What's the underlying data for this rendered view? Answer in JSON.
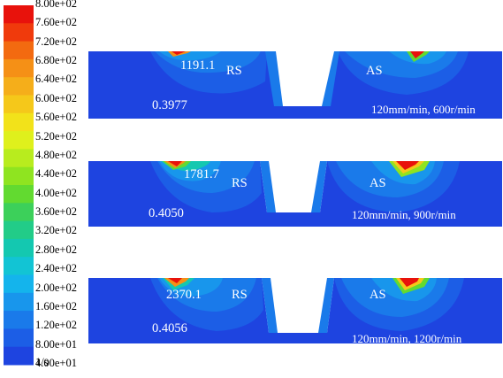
{
  "legend": {
    "unit": "1/s",
    "levels": [
      "8.00e+02",
      "7.60e+02",
      "7.20e+02",
      "6.80e+02",
      "6.40e+02",
      "6.00e+02",
      "5.60e+02",
      "5.20e+02",
      "4.80e+02",
      "4.40e+02",
      "4.00e+02",
      "3.60e+02",
      "3.20e+02",
      "2.80e+02",
      "2.40e+02",
      "2.00e+02",
      "1.60e+02",
      "1.20e+02",
      "8.00e+01",
      "4.00e+01"
    ],
    "colors": [
      "#e8120c",
      "#f03a0c",
      "#f36a10",
      "#f59016",
      "#f5ae1a",
      "#f5c81a",
      "#f2e21a",
      "#dff01c",
      "#b8ec1e",
      "#8fe420",
      "#62da30",
      "#3cd05a",
      "#22cc88",
      "#14c8b0",
      "#12c4d4",
      "#14b4ec",
      "#1896ec",
      "#1a7aea",
      "#1c5ee6",
      "#1e44e0"
    ]
  },
  "panels": [
    {
      "max_value": "1191.1",
      "min_value": "0.3977",
      "rs": "RS",
      "as": "AS",
      "condition": "120mm/min,  600r/min"
    },
    {
      "max_value": "1781.7",
      "min_value": "0.4050",
      "rs": "RS",
      "as": "AS",
      "condition": "120mm/min,  900r/min"
    },
    {
      "max_value": "2370.1",
      "min_value": "0.4056",
      "rs": "RS",
      "as": "AS",
      "condition": "120mm/min,  1200r/min"
    }
  ]
}
